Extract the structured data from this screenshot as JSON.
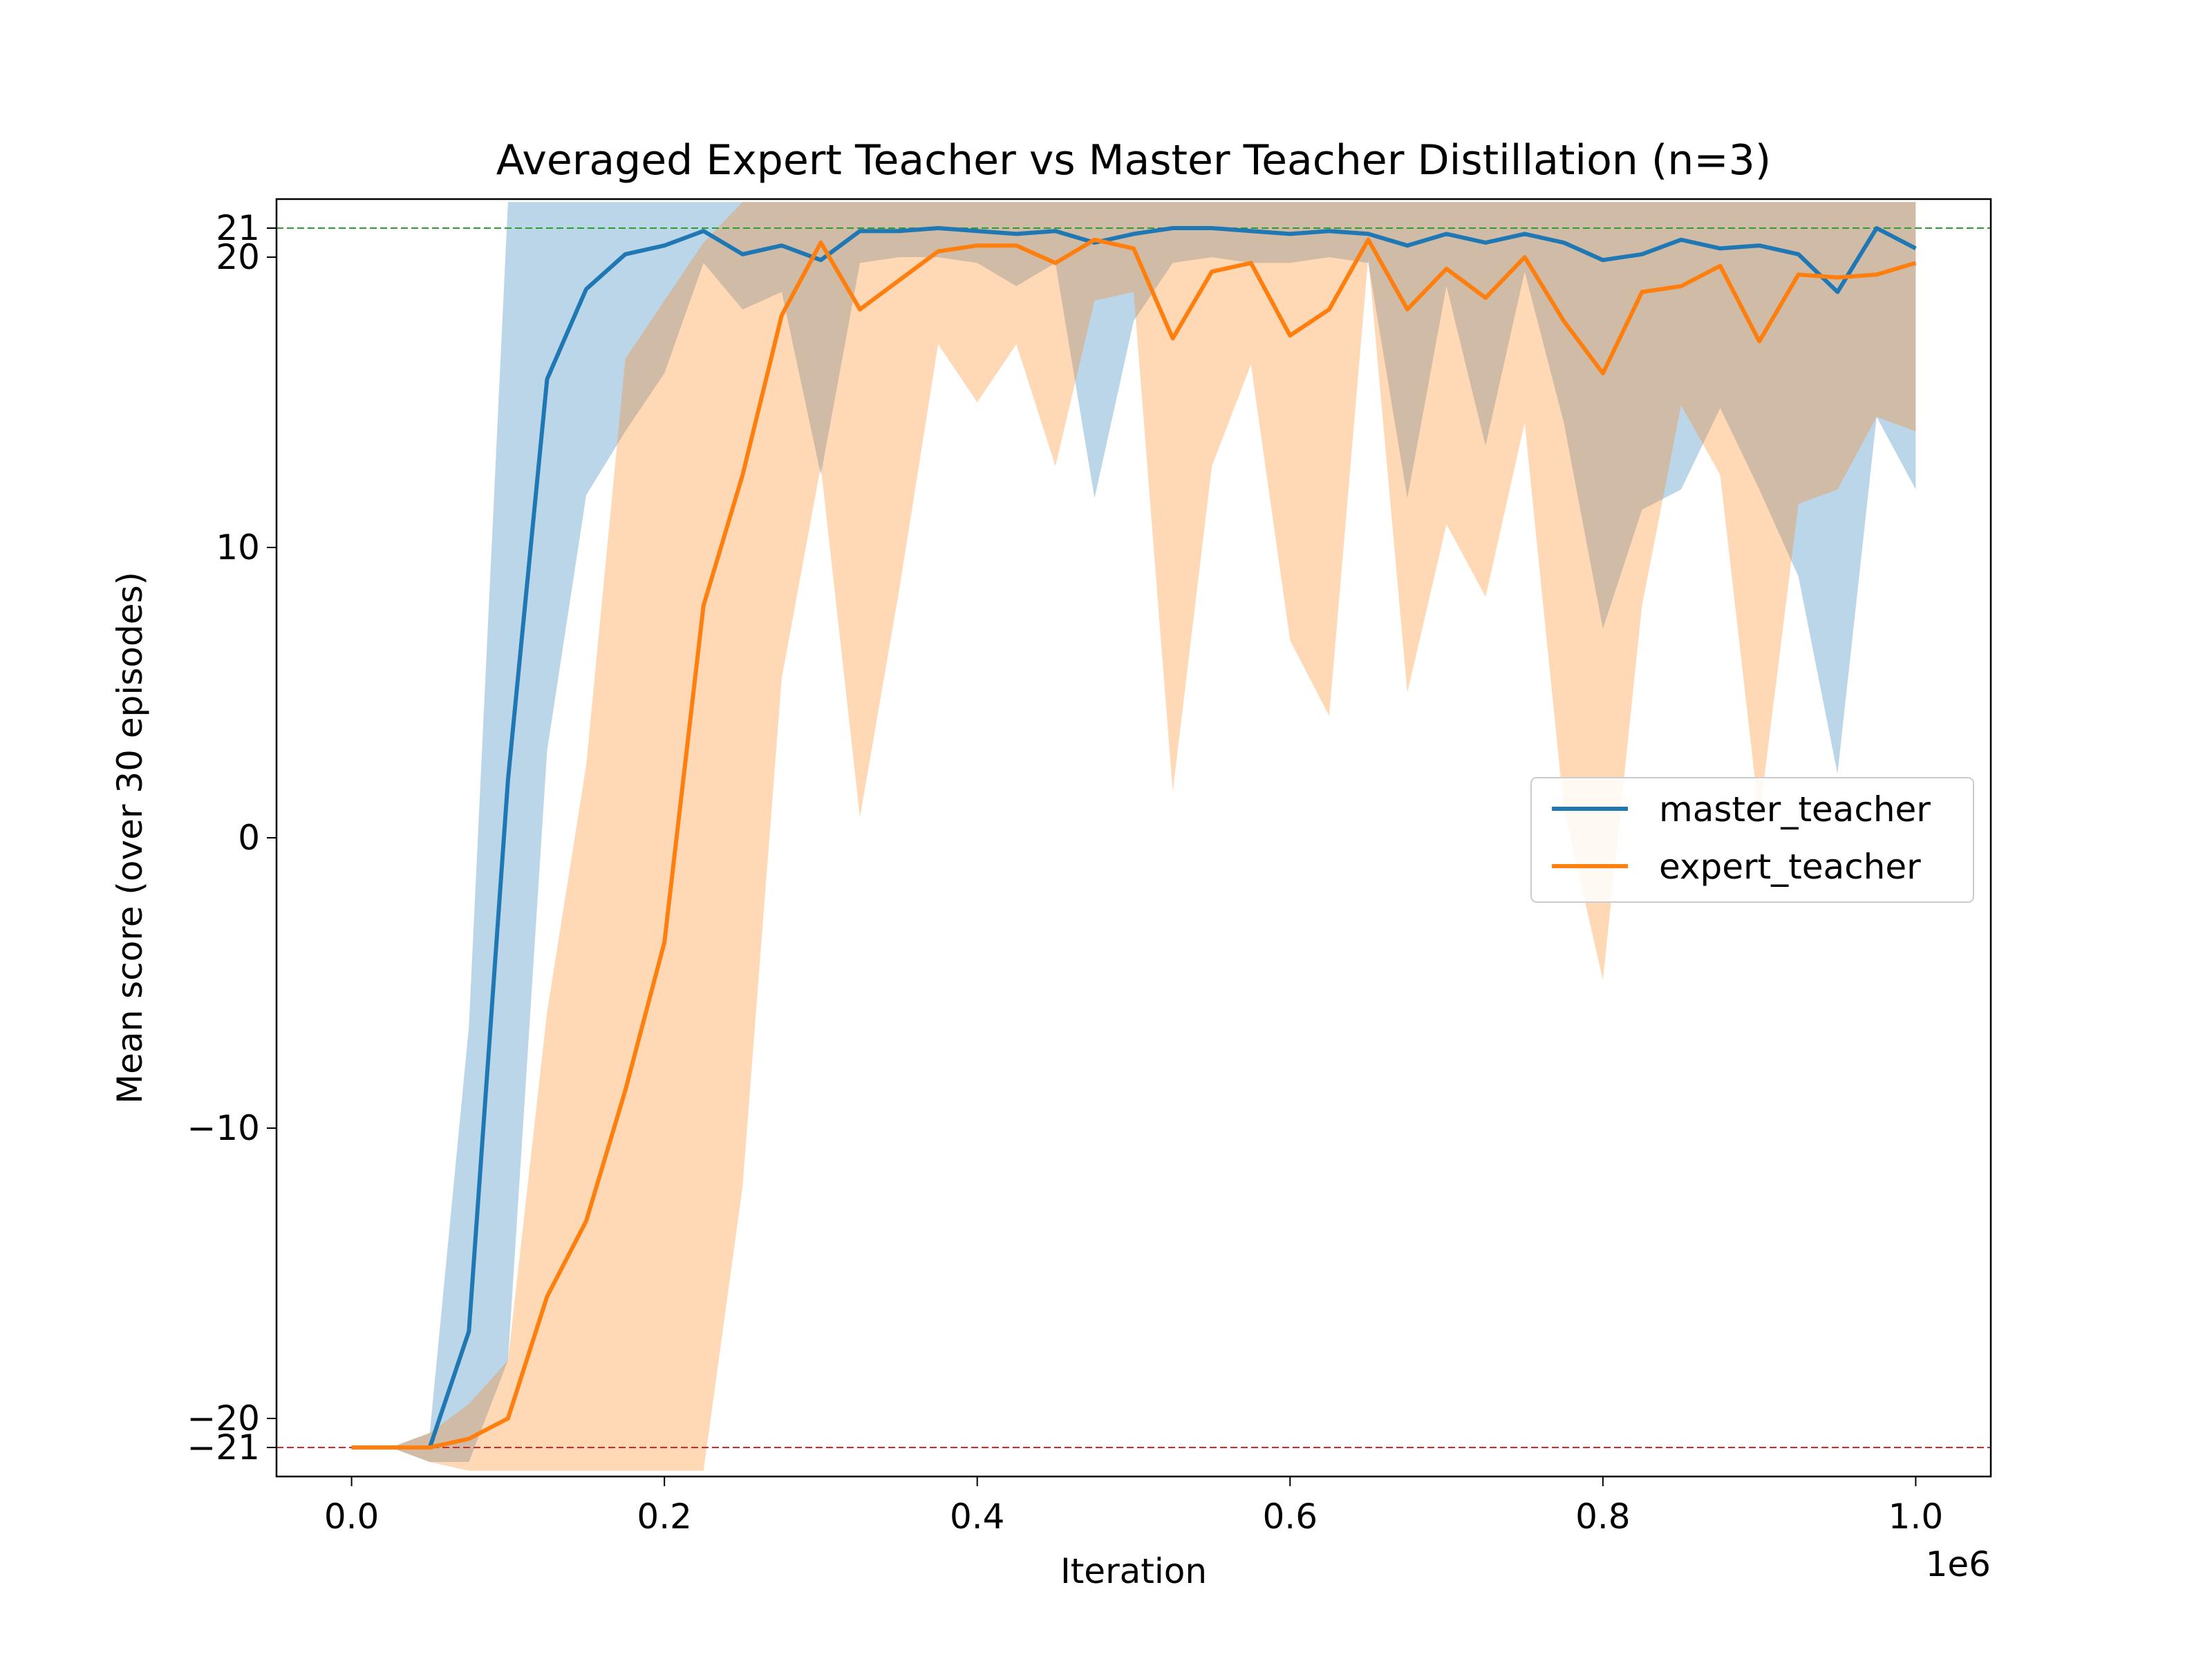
{
  "chart_data": {
    "type": "line",
    "title": "Averaged Expert Teacher vs Master Teacher Distillation (n=3)",
    "xlabel": "Iteration",
    "ylabel": "Mean score (over 30 episodes)",
    "x_offset_label": "1e6",
    "xlim": [
      -0.048,
      1.048
    ],
    "ylim": [
      -22.0,
      22.0
    ],
    "xticks": [
      0.0,
      0.2,
      0.4,
      0.6,
      0.8,
      1.0
    ],
    "xtick_labels": [
      "0.0",
      "0.2",
      "0.4",
      "0.6",
      "0.8",
      "1.0"
    ],
    "yticks": [
      -21,
      -20,
      -10,
      0,
      10,
      20,
      21
    ],
    "ytick_labels": [
      "−21",
      "−20",
      "−10",
      "0",
      "10",
      "20",
      "21"
    ],
    "legend_position": "center-right",
    "grid": false,
    "reference_lines": [
      {
        "y": 21,
        "color": "#2ca02c",
        "style": "dashed"
      },
      {
        "y": -21,
        "color": "#d62728",
        "style": "dashed"
      }
    ],
    "x": [
      0.0,
      0.025,
      0.05,
      0.075,
      0.1,
      0.125,
      0.15,
      0.175,
      0.2,
      0.225,
      0.25,
      0.275,
      0.3,
      0.325,
      0.35,
      0.375,
      0.4,
      0.425,
      0.45,
      0.475,
      0.5,
      0.525,
      0.55,
      0.575,
      0.6,
      0.625,
      0.65,
      0.675,
      0.7,
      0.725,
      0.75,
      0.775,
      0.8,
      0.825,
      0.85,
      0.875,
      0.9,
      0.925,
      0.95,
      0.975,
      1.0
    ],
    "series": [
      {
        "name": "master_teacher",
        "color": "#1f77b4",
        "values": [
          -21.0,
          -21.0,
          -21.0,
          -17.0,
          2.0,
          15.8,
          18.9,
          20.1,
          20.4,
          20.9,
          20.1,
          20.4,
          19.9,
          20.9,
          20.9,
          21.0,
          20.9,
          20.8,
          20.9,
          20.5,
          20.8,
          21.0,
          21.0,
          20.9,
          20.8,
          20.9,
          20.8,
          20.4,
          20.8,
          20.5,
          20.8,
          20.5,
          19.9,
          20.1,
          20.6,
          20.3,
          20.4,
          20.1,
          18.8,
          21.0,
          20.3
        ],
        "band_upper": [
          -21.0,
          -21.0,
          -20.5,
          -6.5,
          21.9,
          21.9,
          21.9,
          21.9,
          21.9,
          21.9,
          21.9,
          21.9,
          21.9,
          21.9,
          21.9,
          21.9,
          21.9,
          21.9,
          21.9,
          21.9,
          21.9,
          21.9,
          21.9,
          21.9,
          21.9,
          21.9,
          21.9,
          21.9,
          21.9,
          21.9,
          21.9,
          21.9,
          21.9,
          21.9,
          21.9,
          21.9,
          21.9,
          21.9,
          21.9,
          21.9,
          21.9
        ],
        "band_lower": [
          -21.0,
          -21.0,
          -21.5,
          -21.5,
          -18.0,
          3.0,
          11.8,
          14.0,
          16.0,
          19.8,
          18.2,
          18.8,
          12.5,
          19.8,
          20.0,
          20.0,
          19.8,
          19.0,
          19.8,
          11.7,
          17.8,
          19.8,
          20.0,
          19.8,
          19.8,
          20.0,
          19.8,
          11.7,
          19.0,
          13.5,
          19.5,
          14.3,
          7.2,
          11.3,
          12.0,
          14.8,
          12.0,
          9.0,
          2.2,
          14.5,
          12.0
        ]
      },
      {
        "name": "expert_teacher",
        "color": "#ff7f0e",
        "values": [
          -21.0,
          -21.0,
          -21.0,
          -20.7,
          -20.0,
          -15.8,
          -13.2,
          -8.7,
          -3.6,
          8.0,
          12.5,
          18.0,
          20.5,
          18.2,
          19.2,
          20.2,
          20.4,
          20.4,
          19.8,
          20.6,
          20.3,
          17.2,
          19.5,
          19.8,
          17.3,
          18.2,
          20.6,
          18.2,
          19.6,
          18.6,
          20.0,
          17.8,
          16.0,
          18.8,
          19.0,
          19.7,
          17.1,
          19.4,
          19.3,
          19.4,
          19.8
        ],
        "band_upper": [
          -21.0,
          -21.0,
          -20.5,
          -19.5,
          -18.0,
          -6.0,
          2.5,
          16.5,
          18.5,
          20.5,
          21.9,
          21.9,
          21.9,
          21.9,
          21.9,
          21.9,
          21.9,
          21.9,
          21.9,
          21.9,
          21.9,
          21.9,
          21.9,
          21.9,
          21.9,
          21.9,
          21.9,
          21.9,
          21.9,
          21.9,
          21.9,
          21.9,
          21.9,
          21.9,
          21.9,
          21.9,
          21.9,
          21.9,
          21.9,
          21.9,
          21.9
        ],
        "band_lower": [
          -21.0,
          -21.0,
          -21.5,
          -21.8,
          -21.8,
          -21.8,
          -21.8,
          -21.8,
          -21.8,
          -21.8,
          -12.0,
          5.5,
          12.8,
          0.7,
          8.5,
          17.0,
          15.0,
          17.0,
          12.8,
          18.5,
          18.8,
          1.6,
          12.8,
          16.3,
          6.8,
          4.2,
          20.0,
          5.0,
          10.8,
          8.3,
          14.3,
          1.0,
          -4.9,
          8.0,
          14.9,
          12.5,
          0.7,
          11.5,
          12.0,
          14.5,
          14.0
        ]
      }
    ]
  }
}
